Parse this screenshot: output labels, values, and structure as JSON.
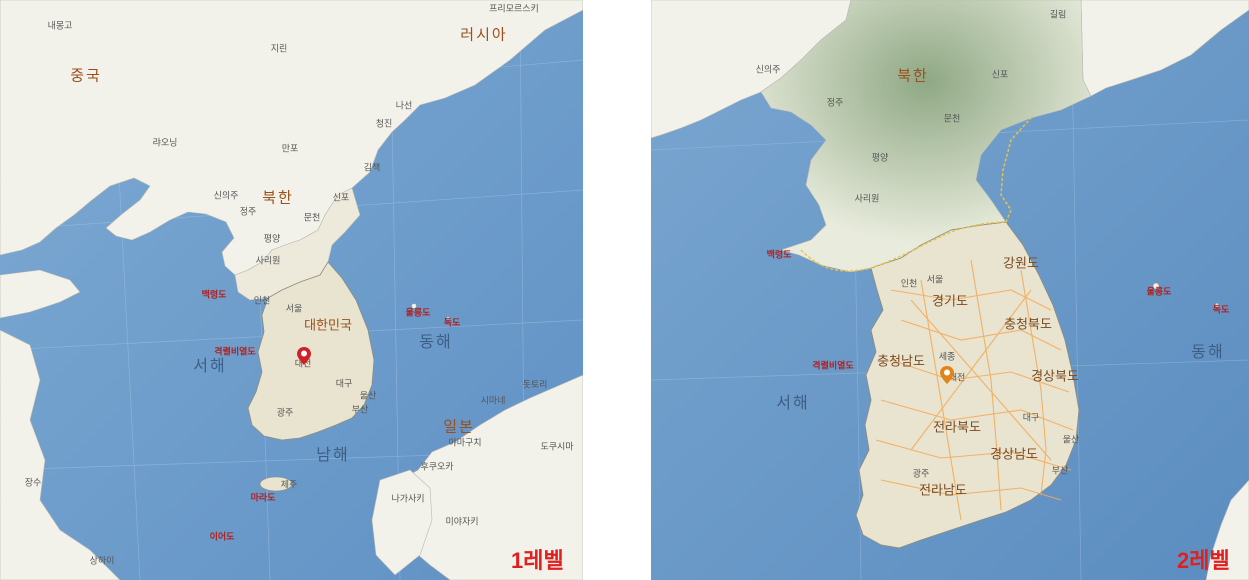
{
  "panels": [
    {
      "level_label": "1레벨",
      "labels": [
        {
          "text": "내몽고",
          "kind": "city"
        },
        {
          "text": "프리모르스키",
          "kind": "city"
        },
        {
          "text": "중국",
          "kind": "nation"
        },
        {
          "text": "러시아",
          "kind": "nation"
        },
        {
          "text": "지린",
          "kind": "city"
        },
        {
          "text": "나선",
          "kind": "city"
        },
        {
          "text": "청진",
          "kind": "city"
        },
        {
          "text": "랴오닝",
          "kind": "city"
        },
        {
          "text": "만포",
          "kind": "city"
        },
        {
          "text": "김책",
          "kind": "city"
        },
        {
          "text": "북한",
          "kind": "nation"
        },
        {
          "text": "신의주",
          "kind": "city"
        },
        {
          "text": "정주",
          "kind": "city"
        },
        {
          "text": "신포",
          "kind": "city"
        },
        {
          "text": "문천",
          "kind": "city"
        },
        {
          "text": "평양",
          "kind": "city"
        },
        {
          "text": "사리원",
          "kind": "city"
        },
        {
          "text": "백령도",
          "kind": "island"
        },
        {
          "text": "인천",
          "kind": "city"
        },
        {
          "text": "서울",
          "kind": "city"
        },
        {
          "text": "대한민국",
          "kind": "nation"
        },
        {
          "text": "울릉도",
          "kind": "island"
        },
        {
          "text": "독도",
          "kind": "island"
        },
        {
          "text": "동해",
          "kind": "sea"
        },
        {
          "text": "격렬비열도",
          "kind": "island"
        },
        {
          "text": "서해",
          "kind": "sea"
        },
        {
          "text": "대전",
          "kind": "city"
        },
        {
          "text": "대구",
          "kind": "city"
        },
        {
          "text": "울산",
          "kind": "city"
        },
        {
          "text": "부산",
          "kind": "city"
        },
        {
          "text": "광주",
          "kind": "city"
        },
        {
          "text": "돗토리",
          "kind": "city"
        },
        {
          "text": "시마네",
          "kind": "city"
        },
        {
          "text": "일본",
          "kind": "nation"
        },
        {
          "text": "야마구치",
          "kind": "city"
        },
        {
          "text": "도쿠시마",
          "kind": "city"
        },
        {
          "text": "남해",
          "kind": "sea"
        },
        {
          "text": "후쿠오카",
          "kind": "city"
        },
        {
          "text": "장수",
          "kind": "city"
        },
        {
          "text": "제주",
          "kind": "city"
        },
        {
          "text": "마라도",
          "kind": "island"
        },
        {
          "text": "나가사키",
          "kind": "city"
        },
        {
          "text": "미야자키",
          "kind": "city"
        },
        {
          "text": "이어도",
          "kind": "island"
        },
        {
          "text": "상하이",
          "kind": "city"
        }
      ]
    },
    {
      "level_label": "2레벨",
      "labels": [
        {
          "text": "길림",
          "kind": "city"
        },
        {
          "text": "신의주",
          "kind": "city"
        },
        {
          "text": "북한",
          "kind": "nation"
        },
        {
          "text": "신포",
          "kind": "city"
        },
        {
          "text": "정주",
          "kind": "city"
        },
        {
          "text": "문천",
          "kind": "city"
        },
        {
          "text": "평양",
          "kind": "city"
        },
        {
          "text": "사리원",
          "kind": "city"
        },
        {
          "text": "백령도",
          "kind": "island"
        },
        {
          "text": "강원도",
          "kind": "prov"
        },
        {
          "text": "울릉도",
          "kind": "island"
        },
        {
          "text": "인천",
          "kind": "city"
        },
        {
          "text": "서울",
          "kind": "city"
        },
        {
          "text": "경기도",
          "kind": "prov"
        },
        {
          "text": "독도",
          "kind": "island"
        },
        {
          "text": "충청북도",
          "kind": "prov"
        },
        {
          "text": "동해",
          "kind": "sea"
        },
        {
          "text": "충청남도",
          "kind": "prov"
        },
        {
          "text": "세종",
          "kind": "city"
        },
        {
          "text": "격렬비열도",
          "kind": "island"
        },
        {
          "text": "대전",
          "kind": "city"
        },
        {
          "text": "경상북도",
          "kind": "prov"
        },
        {
          "text": "서해",
          "kind": "sea"
        },
        {
          "text": "대구",
          "kind": "city"
        },
        {
          "text": "전라북도",
          "kind": "prov"
        },
        {
          "text": "울산",
          "kind": "city"
        },
        {
          "text": "경상남도",
          "kind": "prov"
        },
        {
          "text": "광주",
          "kind": "city"
        },
        {
          "text": "부산",
          "kind": "city"
        },
        {
          "text": "전라남도",
          "kind": "prov"
        }
      ]
    }
  ],
  "colors": {
    "sea": "#6f9fcb",
    "sea_deep": "#5c8fc2",
    "land": "#f2f1e8",
    "korea_land": "#ebe7d6",
    "road": "#f5a855",
    "pin": "#d0202a",
    "level_label": "#e02020"
  }
}
